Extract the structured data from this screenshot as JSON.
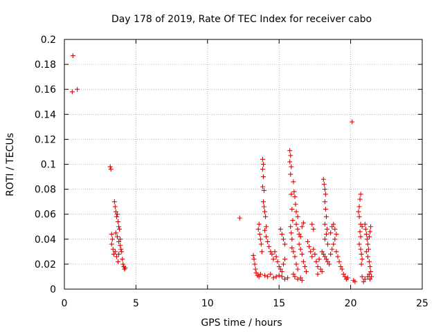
{
  "chart_data": {
    "type": "scatter",
    "title": "Day 178 of 2019, Rate Of TEC Index for receiver cabo",
    "xlabel": "GPS time / hours",
    "ylabel": "ROTI / TECUs",
    "xlim": [
      0,
      25
    ],
    "ylim": [
      0,
      0.2
    ],
    "xticks": [
      0,
      5,
      10,
      15,
      20,
      25
    ],
    "xtick_labels": [
      "0",
      "5",
      "10",
      "15",
      "20",
      "25"
    ],
    "yticks": [
      0,
      0.02,
      0.04,
      0.06,
      0.08,
      0.1,
      0.12,
      0.14,
      0.16,
      0.18,
      0.2
    ],
    "ytick_labels": [
      "0",
      "0.02",
      "0.04",
      "0.06",
      "0.08",
      "0.1",
      "0.12",
      "0.14",
      "0.16",
      "0.18",
      "0.2"
    ],
    "grid": true,
    "marker": "+",
    "marker_color": "#e00000",
    "series": [
      {
        "points": [
          [
            0.6,
            0.187
          ],
          [
            0.55,
            0.158
          ],
          [
            0.9,
            0.16
          ],
          [
            3.2,
            0.098
          ],
          [
            3.25,
            0.096
          ],
          [
            3.3,
            0.044
          ],
          [
            3.35,
            0.04
          ],
          [
            3.3,
            0.036
          ],
          [
            3.4,
            0.032
          ],
          [
            3.45,
            0.028
          ],
          [
            3.5,
            0.07
          ],
          [
            3.55,
            0.066
          ],
          [
            3.6,
            0.062
          ],
          [
            3.65,
            0.058
          ],
          [
            3.7,
            0.06
          ],
          [
            3.75,
            0.054
          ],
          [
            3.8,
            0.05
          ],
          [
            3.6,
            0.045
          ],
          [
            3.7,
            0.042
          ],
          [
            3.8,
            0.038
          ],
          [
            3.9,
            0.035
          ],
          [
            3.55,
            0.03
          ],
          [
            3.65,
            0.026
          ],
          [
            3.75,
            0.022
          ],
          [
            3.85,
            0.048
          ],
          [
            3.9,
            0.04
          ],
          [
            3.95,
            0.032
          ],
          [
            4.0,
            0.03
          ],
          [
            3.8,
            0.028
          ],
          [
            4.05,
            0.024
          ],
          [
            4.1,
            0.02
          ],
          [
            4.15,
            0.018
          ],
          [
            4.2,
            0.016
          ],
          [
            4.25,
            0.017
          ],
          [
            12.25,
            0.057
          ],
          [
            13.2,
            0.027
          ],
          [
            13.25,
            0.024
          ],
          [
            13.3,
            0.02
          ],
          [
            13.35,
            0.016
          ],
          [
            13.4,
            0.013
          ],
          [
            13.5,
            0.011
          ],
          [
            13.6,
            0.01
          ],
          [
            13.7,
            0.012
          ],
          [
            13.55,
            0.048
          ],
          [
            13.6,
            0.052
          ],
          [
            13.65,
            0.044
          ],
          [
            13.7,
            0.04
          ],
          [
            13.75,
            0.036
          ],
          [
            13.8,
            0.03
          ],
          [
            13.85,
            0.104
          ],
          [
            13.9,
            0.1
          ],
          [
            13.85,
            0.096
          ],
          [
            13.9,
            0.09
          ],
          [
            13.85,
            0.082
          ],
          [
            13.95,
            0.079
          ],
          [
            13.9,
            0.07
          ],
          [
            13.95,
            0.066
          ],
          [
            14.0,
            0.062
          ],
          [
            14.05,
            0.058
          ],
          [
            14.1,
            0.05
          ],
          [
            14.0,
            0.047
          ],
          [
            14.1,
            0.042
          ],
          [
            14.2,
            0.038
          ],
          [
            14.3,
            0.034
          ],
          [
            14.4,
            0.03
          ],
          [
            14.5,
            0.028
          ],
          [
            14.6,
            0.024
          ],
          [
            14.0,
            0.011
          ],
          [
            14.2,
            0.01
          ],
          [
            14.4,
            0.012
          ],
          [
            14.6,
            0.009
          ],
          [
            14.8,
            0.01
          ],
          [
            15.0,
            0.011
          ],
          [
            14.7,
            0.03
          ],
          [
            14.8,
            0.026
          ],
          [
            14.9,
            0.022
          ],
          [
            15.0,
            0.018
          ],
          [
            15.1,
            0.016
          ],
          [
            15.2,
            0.014
          ],
          [
            15.3,
            0.02
          ],
          [
            15.4,
            0.024
          ],
          [
            15.2,
            0.01
          ],
          [
            15.4,
            0.008
          ],
          [
            15.6,
            0.009
          ],
          [
            15.1,
            0.048
          ],
          [
            15.2,
            0.044
          ],
          [
            15.3,
            0.04
          ],
          [
            15.4,
            0.036
          ],
          [
            15.75,
            0.111
          ],
          [
            15.8,
            0.107
          ],
          [
            15.75,
            0.102
          ],
          [
            15.85,
            0.098
          ],
          [
            15.8,
            0.092
          ],
          [
            15.85,
            0.076
          ],
          [
            15.9,
            0.064
          ],
          [
            15.95,
            0.055
          ],
          [
            15.8,
            0.05
          ],
          [
            15.85,
            0.045
          ],
          [
            15.9,
            0.04
          ],
          [
            15.9,
            0.033
          ],
          [
            16.0,
            0.03
          ],
          [
            16.1,
            0.026
          ],
          [
            16.2,
            0.02
          ],
          [
            16.3,
            0.016
          ],
          [
            16.0,
            0.012
          ],
          [
            16.1,
            0.01
          ],
          [
            16.3,
            0.008
          ],
          [
            16.5,
            0.009
          ],
          [
            16.6,
            0.007
          ],
          [
            16.0,
            0.086
          ],
          [
            16.05,
            0.078
          ],
          [
            16.1,
            0.074
          ],
          [
            16.15,
            0.068
          ],
          [
            16.2,
            0.062
          ],
          [
            16.3,
            0.058
          ],
          [
            16.2,
            0.052
          ],
          [
            16.3,
            0.048
          ],
          [
            16.4,
            0.044
          ],
          [
            16.5,
            0.042
          ],
          [
            16.6,
            0.05
          ],
          [
            16.7,
            0.053
          ],
          [
            16.4,
            0.036
          ],
          [
            16.5,
            0.032
          ],
          [
            16.6,
            0.028
          ],
          [
            16.7,
            0.022
          ],
          [
            16.8,
            0.018
          ],
          [
            16.9,
            0.014
          ],
          [
            17.0,
            0.038
          ],
          [
            17.1,
            0.034
          ],
          [
            17.2,
            0.03
          ],
          [
            17.3,
            0.026
          ],
          [
            17.4,
            0.032
          ],
          [
            17.5,
            0.028
          ],
          [
            17.3,
            0.052
          ],
          [
            17.4,
            0.048
          ],
          [
            17.6,
            0.022
          ],
          [
            17.7,
            0.018
          ],
          [
            17.8,
            0.024
          ],
          [
            18.1,
            0.088
          ],
          [
            18.15,
            0.084
          ],
          [
            18.2,
            0.08
          ],
          [
            18.25,
            0.076
          ],
          [
            18.2,
            0.07
          ],
          [
            18.25,
            0.064
          ],
          [
            18.3,
            0.058
          ],
          [
            18.2,
            0.052
          ],
          [
            18.35,
            0.048
          ],
          [
            18.3,
            0.044
          ],
          [
            18.2,
            0.04
          ],
          [
            18.4,
            0.036
          ],
          [
            18.0,
            0.03
          ],
          [
            18.1,
            0.028
          ],
          [
            18.2,
            0.026
          ],
          [
            18.3,
            0.024
          ],
          [
            18.4,
            0.022
          ],
          [
            18.5,
            0.02
          ],
          [
            18.6,
            0.028
          ],
          [
            18.7,
            0.032
          ],
          [
            18.8,
            0.036
          ],
          [
            18.9,
            0.04
          ],
          [
            18.6,
            0.045
          ],
          [
            18.7,
            0.05
          ],
          [
            18.8,
            0.052
          ],
          [
            18.9,
            0.048
          ],
          [
            19.0,
            0.044
          ],
          [
            19.0,
            0.03
          ],
          [
            19.1,
            0.026
          ],
          [
            19.2,
            0.022
          ],
          [
            19.3,
            0.018
          ],
          [
            19.4,
            0.016
          ],
          [
            19.5,
            0.012
          ],
          [
            19.6,
            0.01
          ],
          [
            19.7,
            0.008
          ],
          [
            19.8,
            0.009
          ],
          [
            17.9,
            0.016
          ],
          [
            18.0,
            0.014
          ],
          [
            17.7,
            0.012
          ],
          [
            20.1,
            0.134
          ],
          [
            20.2,
            0.007
          ],
          [
            20.3,
            0.006
          ],
          [
            20.7,
            0.076
          ],
          [
            20.65,
            0.072
          ],
          [
            20.6,
            0.066
          ],
          [
            20.55,
            0.062
          ],
          [
            20.6,
            0.058
          ],
          [
            20.7,
            0.052
          ],
          [
            20.8,
            0.05
          ],
          [
            20.65,
            0.046
          ],
          [
            20.7,
            0.042
          ],
          [
            20.6,
            0.036
          ],
          [
            20.7,
            0.032
          ],
          [
            20.75,
            0.028
          ],
          [
            20.8,
            0.024
          ],
          [
            20.75,
            0.02
          ],
          [
            20.8,
            0.01
          ],
          [
            20.9,
            0.006
          ],
          [
            21.0,
            0.008
          ],
          [
            21.0,
            0.052
          ],
          [
            21.05,
            0.048
          ],
          [
            21.1,
            0.044
          ],
          [
            21.15,
            0.04
          ],
          [
            21.2,
            0.036
          ],
          [
            21.25,
            0.032
          ],
          [
            21.1,
            0.03
          ],
          [
            21.2,
            0.026
          ],
          [
            21.3,
            0.022
          ],
          [
            21.35,
            0.018
          ],
          [
            21.4,
            0.014
          ],
          [
            21.3,
            0.012
          ],
          [
            21.2,
            0.01
          ],
          [
            21.35,
            0.008
          ],
          [
            21.45,
            0.01
          ],
          [
            21.4,
            0.05
          ],
          [
            21.35,
            0.046
          ],
          [
            21.3,
            0.042
          ]
        ]
      }
    ]
  }
}
